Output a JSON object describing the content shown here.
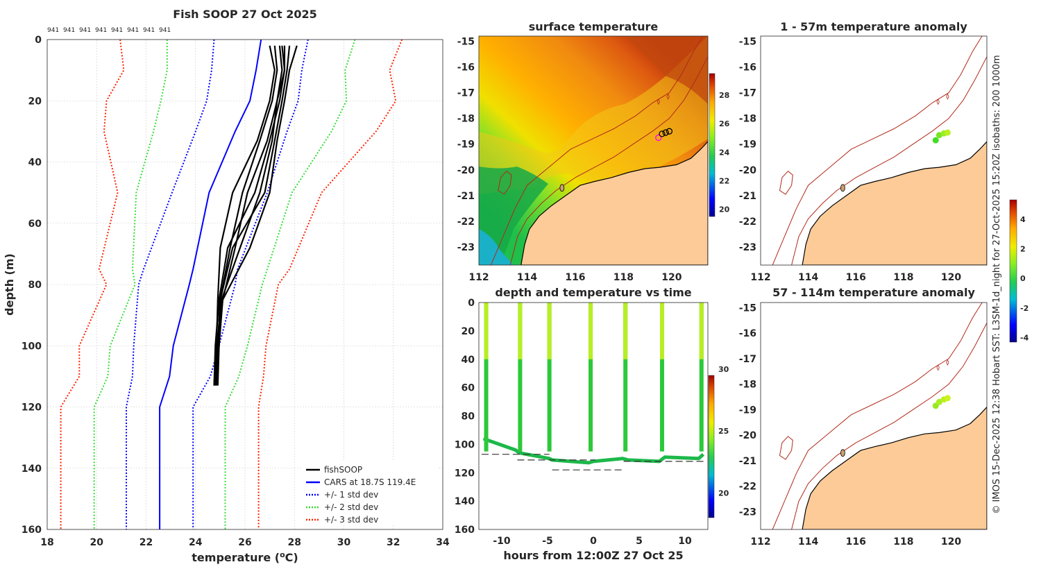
{
  "figure": {
    "main_title": "Fish SOOP 27 Oct 2025",
    "copyright": "© IMOS 15-Dec-2025 12:38 Hobart SST: L3SM-1d_night for 27-Oct-2025 15:20Z isobaths: 200  1000m",
    "colors": {
      "ocean_warm": "#c96a1e",
      "land": "#fdcb98",
      "profile": "#000000",
      "cars": "#0000ff",
      "std1": "#0000ff",
      "std2": "#33dd33",
      "std3": "#ff2200",
      "isobath": "#b02a1a",
      "track_marker": "#ff00ff"
    }
  },
  "chart_data": [
    {
      "id": "profile",
      "type": "line",
      "title": "",
      "xlabel": "temperature (",
      "xlabel_sup": "o",
      "xlabel_unit": "C)",
      "ylabel": "depth (m)",
      "xlim": [
        18,
        34
      ],
      "ylim": [
        0,
        160
      ],
      "y_inverted": true,
      "xticks": [
        18,
        20,
        22,
        24,
        26,
        28,
        30,
        32,
        34
      ],
      "yticks": [
        0,
        20,
        40,
        60,
        80,
        100,
        120,
        140,
        160
      ],
      "grid": true,
      "top_labels": [
        "941",
        "941",
        "941",
        "941",
        "941",
        "941",
        "941",
        "941"
      ],
      "legend_position": "bottom-right",
      "depths": [
        0,
        10,
        20,
        30,
        50,
        75,
        80,
        100,
        110,
        120,
        160
      ],
      "series": [
        {
          "name": "fishSOOP",
          "style": "solid",
          "color": "#000000",
          "width": 2.6
        },
        {
          "name": "CARS at 18.7S 119.4E",
          "style": "solid",
          "color": "#0000ff",
          "width": 2,
          "values": [
            26.65,
            26.45,
            26.2,
            25.6,
            24.55,
            23.9,
            23.75,
            23.1,
            22.95,
            22.55,
            22.55
          ]
        },
        {
          "name": "+/- 1 std dev",
          "style": "dotted",
          "color": "#0000ff",
          "width": 2,
          "values_low": [
            24.75,
            24.65,
            24.45,
            24.0,
            23.05,
            21.9,
            21.7,
            21.5,
            21.45,
            21.2,
            21.2
          ],
          "values_high": [
            28.55,
            28.3,
            28.15,
            27.7,
            26.9,
            25.7,
            25.6,
            24.95,
            24.6,
            23.9,
            23.9
          ]
        },
        {
          "name": "+/- 2 std dev",
          "style": "dotted",
          "color": "#33dd33",
          "width": 2,
          "values_low": [
            22.85,
            22.85,
            22.6,
            22.3,
            21.6,
            21.45,
            21.55,
            20.55,
            20.45,
            19.9,
            19.9
          ],
          "values_high": [
            30.45,
            30.05,
            30.1,
            29.5,
            27.9,
            26.9,
            26.7,
            26.1,
            25.75,
            25.2,
            25.2
          ]
        },
        {
          "name": "+/- 3 std dev",
          "style": "dotted",
          "color": "#ff2200",
          "width": 2,
          "values_low": [
            20.95,
            21.1,
            20.4,
            20.3,
            20.85,
            20.1,
            20.4,
            19.3,
            19.3,
            18.55,
            18.55
          ],
          "values_high": [
            32.35,
            31.85,
            32.1,
            31.3,
            29.1,
            27.8,
            27.35,
            26.85,
            26.75,
            26.55,
            26.55
          ]
        }
      ],
      "profiles": [
        {
          "temps": [
            27.2,
            27.3,
            27.1,
            26.6,
            25.9,
            25.4,
            25.0,
            24.9,
            24.8
          ],
          "depths": [
            2,
            10,
            20,
            33,
            50,
            68,
            85,
            100,
            113
          ]
        },
        {
          "temps": [
            27.4,
            27.5,
            27.3,
            26.9,
            26.1,
            25.6,
            25.1,
            24.9,
            24.85
          ],
          "depths": [
            2,
            10,
            20,
            33,
            50,
            68,
            85,
            100,
            113
          ]
        },
        {
          "temps": [
            27.6,
            27.6,
            27.4,
            27.0,
            26.4,
            25.3,
            24.95,
            24.8,
            24.75
          ],
          "depths": [
            2,
            10,
            20,
            33,
            50,
            68,
            85,
            100,
            113
          ]
        },
        {
          "temps": [
            27.8,
            27.7,
            27.5,
            27.2,
            26.8,
            25.5,
            25.0,
            24.9,
            24.8
          ],
          "depths": [
            2,
            10,
            20,
            33,
            50,
            68,
            85,
            100,
            113
          ]
        },
        {
          "temps": [
            27.0,
            27.2,
            27.0,
            26.5,
            25.5,
            25.0,
            24.9,
            24.85,
            24.75
          ],
          "depths": [
            2,
            10,
            20,
            33,
            50,
            68,
            85,
            100,
            113
          ]
        },
        {
          "temps": [
            27.5,
            27.6,
            27.3,
            27.1,
            26.6,
            25.8,
            25.05,
            24.95,
            24.8
          ],
          "depths": [
            2,
            10,
            20,
            33,
            50,
            68,
            85,
            100,
            113
          ]
        },
        {
          "temps": [
            28.1,
            27.8,
            27.6,
            27.3,
            27.0,
            26.2,
            25.1,
            24.95,
            24.9
          ],
          "depths": [
            2,
            10,
            20,
            33,
            50,
            68,
            85,
            100,
            113
          ]
        }
      ]
    },
    {
      "id": "sst_map",
      "type": "heatmap",
      "title": "surface temperature",
      "xlim": [
        112,
        121.5
      ],
      "ylim": [
        -23.7,
        -14.8
      ],
      "xticks": [
        112,
        114,
        116,
        118,
        120
      ],
      "yticks": [
        -15,
        -16,
        -17,
        -18,
        -19,
        -20,
        -21,
        -22,
        -23
      ],
      "colorbar": {
        "min": 19.5,
        "max": 29.5,
        "ticks": [
          20,
          22,
          24,
          26,
          28
        ]
      },
      "track_points": [
        [
          119.45,
          -18.75
        ],
        [
          119.6,
          -18.6
        ],
        [
          119.75,
          -18.55
        ],
        [
          119.9,
          -18.5
        ]
      ]
    },
    {
      "id": "depth_time",
      "type": "scatter",
      "title": "depth and temperature vs time",
      "xlabel": "hours from 12:00Z 27 Oct 25",
      "xlim": [
        -12.5,
        12.5
      ],
      "ylim": [
        0,
        160
      ],
      "y_inverted": true,
      "xticks": [
        -10,
        -5,
        0,
        5,
        10
      ],
      "yticks": [
        0,
        20,
        40,
        60,
        80,
        100,
        120,
        140,
        160
      ],
      "colorbar": {
        "min": 18,
        "max": 29.5,
        "ticks": [
          20,
          25,
          30
        ]
      },
      "dive_times": [
        -11.7,
        -8.0,
        -4.8,
        -0.3,
        3.5,
        7.5,
        11.8
      ],
      "bottom_depth": {
        "x": [
          -12,
          -8.5,
          -8.1,
          -4.8,
          -4.5,
          -0.5,
          0,
          3.2,
          3.8,
          7.2,
          7.8,
          11.5,
          12
        ],
        "y": [
          96,
          104,
          106,
          110,
          111,
          113,
          112,
          110,
          111,
          112,
          109,
          110,
          107
        ]
      },
      "seafloor_dashes": [
        {
          "x": [
            -12.2,
            -4.8
          ],
          "y": [
            107,
            107
          ]
        },
        {
          "x": [
            -8.3,
            0.2
          ],
          "y": [
            111,
            111
          ]
        },
        {
          "x": [
            -4.5,
            3.3
          ],
          "y": [
            118,
            118
          ]
        },
        {
          "x": [
            3.3,
            12.3
          ],
          "y": [
            112,
            112
          ]
        }
      ]
    },
    {
      "id": "anomaly_shallow",
      "type": "scatter",
      "title": "1 - 57m temperature anomaly",
      "xlim": [
        112,
        121.5
      ],
      "ylim": [
        -23.7,
        -14.8
      ],
      "xticks": [
        112,
        114,
        116,
        118,
        120
      ],
      "yticks": [
        -15,
        -16,
        -17,
        -18,
        -19,
        -20,
        -21,
        -22,
        -23
      ],
      "points": [
        [
          119.35,
          -18.85
        ],
        [
          119.5,
          -18.65
        ],
        [
          119.7,
          -18.58
        ],
        [
          119.85,
          -18.55
        ]
      ]
    },
    {
      "id": "anomaly_deep",
      "type": "scatter",
      "title": "57 - 114m temperature anomaly",
      "xlim": [
        112,
        121.5
      ],
      "ylim": [
        -23.7,
        -14.8
      ],
      "xticks": [
        112,
        114,
        116,
        118,
        120
      ],
      "yticks": [
        -15,
        -16,
        -17,
        -18,
        -19,
        -20,
        -21,
        -22,
        -23
      ],
      "points": [
        [
          119.35,
          -18.85
        ],
        [
          119.5,
          -18.7
        ],
        [
          119.7,
          -18.6
        ],
        [
          119.85,
          -18.55
        ]
      ]
    },
    {
      "id": "anomaly_colorbar",
      "type": "heatmap",
      "colorbar": {
        "min": -4.3,
        "max": 5.3,
        "ticks": [
          4,
          2,
          0,
          -2,
          -4
        ]
      }
    }
  ]
}
